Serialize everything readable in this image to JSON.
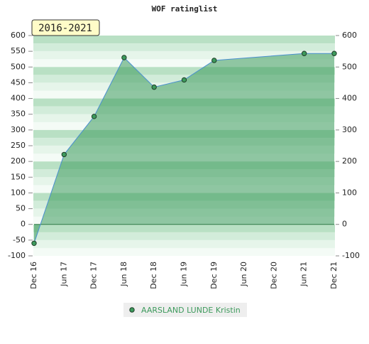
{
  "chart_data": {
    "type": "line",
    "title": "WOF ratinglist",
    "annotation": "2016-2021",
    "categories": [
      "Dec 16",
      "Jun 17",
      "Dec 17",
      "Jun 18",
      "Dec 18",
      "Jun 19",
      "Dec 19",
      "Jun 20",
      "Dec 20",
      "Jun 21",
      "Dec 21"
    ],
    "series": [
      {
        "name": "AARSLAND LUNDE Kristin",
        "color": "#3d9a5c",
        "line_color": "#4a8fd0",
        "x": [
          "Dec 16",
          "Jun 17",
          "Dec 17",
          "Jun 18",
          "Dec 18",
          "Jun 19",
          "Dec 19",
          "Jun 21",
          "Dec 21"
        ],
        "values": [
          -60,
          222,
          343,
          530,
          436,
          459,
          521,
          543,
          543
        ]
      }
    ],
    "ylim": [
      -100,
      600
    ],
    "yticks": [
      -100,
      -50,
      0,
      50,
      100,
      150,
      200,
      250,
      300,
      350,
      400,
      450,
      500,
      550,
      600
    ],
    "y2lim": [
      -100,
      600
    ],
    "y2ticks": [
      -100,
      0,
      100,
      200,
      300,
      400,
      500,
      600
    ]
  }
}
